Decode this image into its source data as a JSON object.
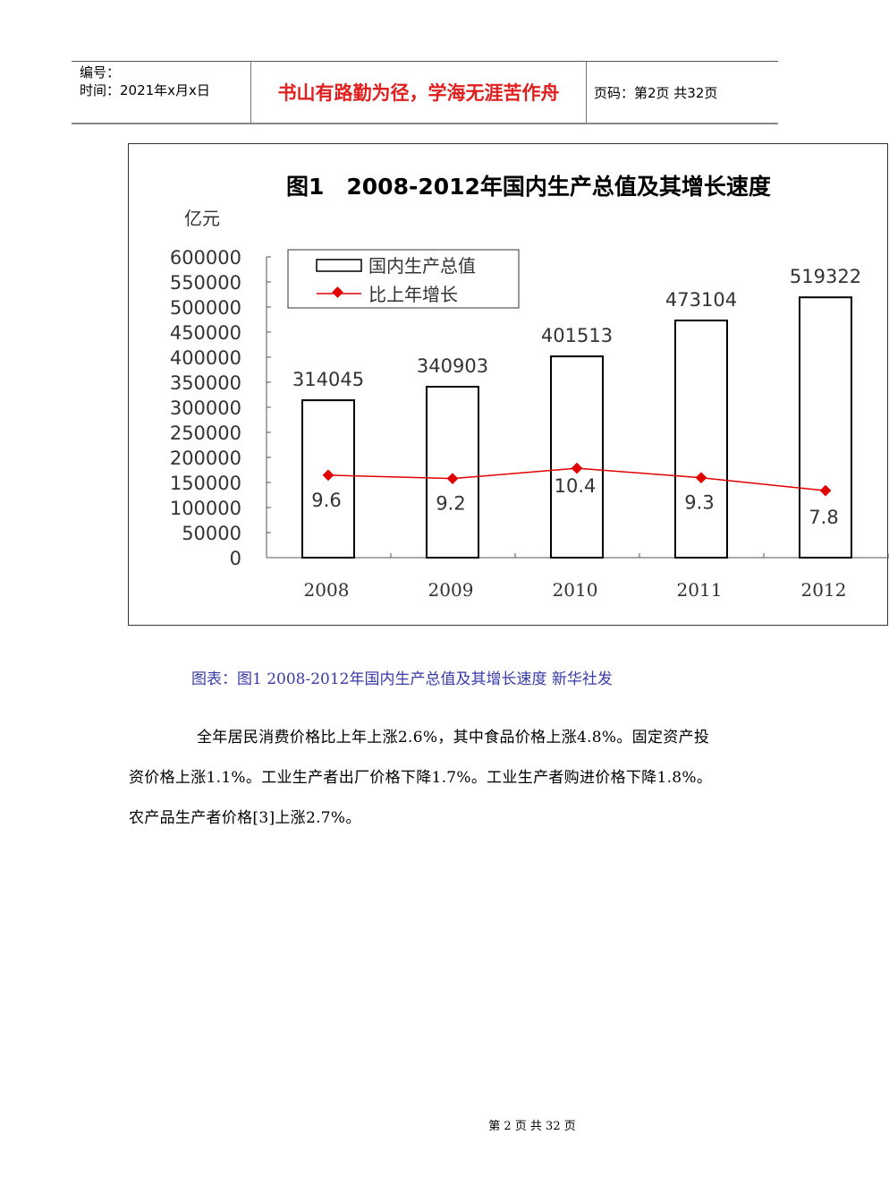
{
  "header": {
    "number_label": "编号：",
    "date_label": "时间：2021年x月x日",
    "motto": "书山有路勤为径，学海无涯苦作舟",
    "page_info": "页码：第2页 共32页"
  },
  "chart_data": {
    "type": "bar+line",
    "title": "图1　2008-2012年国内生产总值及其增长速度",
    "ylabel": "亿元",
    "categories": [
      "2008",
      "2009",
      "2010",
      "2011",
      "2012"
    ],
    "ylim": [
      0,
      600000
    ],
    "yticks": [
      "600000",
      "550000",
      "500000",
      "450000",
      "400000",
      "350000",
      "300000",
      "250000",
      "200000",
      "150000",
      "100000",
      "50000",
      "0"
    ],
    "series": [
      {
        "name": "国内生产总值",
        "type": "bar",
        "values": [
          314045,
          340903,
          401513,
          473104,
          519322
        ],
        "color": "#000000"
      },
      {
        "name": "比上年增长",
        "type": "line",
        "values": [
          9.6,
          9.2,
          10.4,
          9.3,
          7.8
        ],
        "color": "#e00000"
      }
    ],
    "legend": "top-left",
    "grid": false
  },
  "caption": "图表：图1 2008-2012年国内生产总值及其增长速度 新华社发",
  "paragraph": "全年居民消费价格比上年上涨2.6%，其中食品价格上涨4.8%。固定资产投资价格上涨1.1%。工业生产者出厂价格下降1.7%。工业生产者购进价格下降1.8%。农产品生产者价格[3]上涨2.7%。",
  "footer": "第 2 页 共 32 页"
}
